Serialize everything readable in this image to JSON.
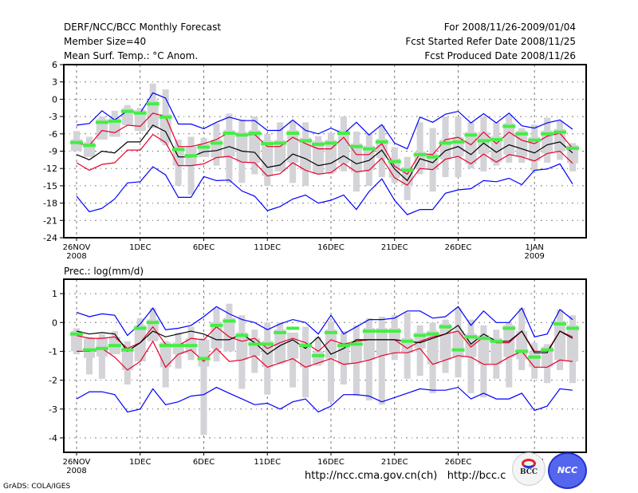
{
  "header": {
    "title": "DERF/NCC/BCC Monthly Forecast",
    "member_size": "Member Size=40",
    "variable": "Mean Surf. Temp.: °C Anom.",
    "period": "For 2008/11/26-2009/01/04",
    "started": "Fcst Started Refer Date 2008/11/25",
    "produced": "Fcst Produced Date 2008/11/26"
  },
  "footer": {
    "grads": "GrADS: COLA/IGES",
    "url": "http://ncc.cma.gov.cn(ch)   http://bcc.c",
    "logos": [
      "BCC",
      "NCC"
    ]
  },
  "colors": {
    "max_min": "#0000ff",
    "spread": "#e8002a",
    "mean": "#000000",
    "median": "#44ee44",
    "box": "#d3d3d8"
  },
  "chart_data": [
    {
      "type": "line",
      "title": "Mean Surf. Temp.: °C Anom.",
      "xlabel": "",
      "ylabel": "",
      "ylim": [
        -24,
        6
      ],
      "yticks": [
        6,
        3,
        0,
        -3,
        -6,
        -9,
        -12,
        -15,
        -18,
        -21,
        -24
      ],
      "ytick_labels": [
        "6",
        "3",
        "0",
        "-3",
        "-6",
        "-9",
        "-12",
        "-15",
        "-18",
        "-21",
        "-24"
      ],
      "xticks": [
        0,
        5,
        10,
        15,
        20,
        25,
        30,
        36
      ],
      "xtick_labels": [
        "26NOV\n2008",
        "1DEC",
        "6DEC",
        "11DEC",
        "16DEC",
        "21DEC",
        "26DEC",
        "1JAN\n2009"
      ],
      "grid": true,
      "x": [
        0,
        1,
        2,
        3,
        4,
        5,
        6,
        7,
        8,
        9,
        10,
        11,
        12,
        13,
        14,
        15,
        16,
        17,
        18,
        19,
        20,
        21,
        22,
        23,
        24,
        25,
        26,
        27,
        28,
        29,
        30,
        31,
        32,
        33,
        34,
        35,
        36,
        37,
        38,
        39
      ],
      "series": [
        {
          "name": "max",
          "values": [
            -4.5,
            -4.2,
            -2.0,
            -3.6,
            -2.0,
            -2.4,
            1.1,
            0.2,
            -4.3,
            -4.3,
            -5.1,
            -4.0,
            -3.1,
            -3.7,
            -3.7,
            -5.4,
            -5.4,
            -3.6,
            -5.4,
            -6.0,
            -5.0,
            -6.0,
            -4.0,
            -6.2,
            -4.4,
            -7.6,
            -8.6,
            -3.1,
            -4.0,
            -2.6,
            -2.1,
            -4.1,
            -2.5,
            -4.1,
            -2.4,
            -4.6,
            -5.0,
            -4.1,
            -3.6,
            -5.2
          ]
        },
        {
          "name": "spread_upper",
          "values": [
            -7.6,
            -8.0,
            -5.4,
            -5.8,
            -4.5,
            -4.7,
            -2.4,
            -3.0,
            -8.2,
            -8.2,
            -7.7,
            -7.0,
            -5.7,
            -6.2,
            -6.1,
            -8.2,
            -8.2,
            -6.6,
            -7.7,
            -8.6,
            -8.6,
            -6.6,
            -9.6,
            -9.6,
            -7.7,
            -11.6,
            -13.0,
            -9.4,
            -9.6,
            -7.0,
            -6.6,
            -7.9,
            -5.7,
            -7.7,
            -5.7,
            -7.1,
            -7.7,
            -6.4,
            -5.9,
            -8.5
          ]
        },
        {
          "name": "mean",
          "values": [
            -9.6,
            -10.5,
            -9.0,
            -9.3,
            -7.4,
            -7.4,
            -4.5,
            -5.6,
            -10.0,
            -10.0,
            -9.1,
            -8.9,
            -8.2,
            -9.0,
            -9.2,
            -11.8,
            -11.4,
            -9.5,
            -10.3,
            -11.5,
            -11.1,
            -9.8,
            -11.2,
            -10.6,
            -8.8,
            -12.1,
            -14.1,
            -10.3,
            -11.0,
            -8.9,
            -8.2,
            -9.6,
            -7.6,
            -9.2,
            -7.9,
            -8.6,
            -9.3,
            -7.9,
            -7.4,
            -9.3
          ]
        },
        {
          "name": "spread_lower",
          "values": [
            -11.0,
            -12.3,
            -11.3,
            -11.0,
            -8.8,
            -8.8,
            -6.1,
            -7.5,
            -11.5,
            -11.5,
            -11.2,
            -10.1,
            -9.9,
            -10.9,
            -11.0,
            -13.3,
            -12.9,
            -11.0,
            -12.3,
            -13.0,
            -12.7,
            -11.1,
            -12.6,
            -12.3,
            -10.2,
            -13.6,
            -14.9,
            -12.0,
            -12.2,
            -10.4,
            -9.9,
            -11.2,
            -9.5,
            -10.9,
            -9.6,
            -10.0,
            -10.7,
            -9.4,
            -9.0,
            -11.1
          ]
        },
        {
          "name": "min",
          "values": [
            -16.8,
            -19.5,
            -18.9,
            -17.3,
            -14.5,
            -14.3,
            -11.7,
            -13.1,
            -17.0,
            -17.0,
            -13.4,
            -14.1,
            -14.0,
            -15.9,
            -16.8,
            -19.3,
            -18.6,
            -17.3,
            -16.6,
            -18.0,
            -17.5,
            -16.6,
            -19.1,
            -16.0,
            -13.8,
            -17.5,
            -20.0,
            -19.1,
            -19.1,
            -16.3,
            -15.7,
            -15.5,
            -14.1,
            -14.3,
            -13.7,
            -14.8,
            -12.3,
            -12.1,
            -11.2,
            -14.7
          ]
        },
        {
          "name": "median",
          "values": [
            -7.5,
            -8.0,
            -4.0,
            -3.8,
            -2.1,
            -2.4,
            -0.8,
            -3.1,
            -8.7,
            -9.8,
            -8.3,
            -7.6,
            -5.9,
            -6.2,
            -5.9,
            -7.7,
            -7.6,
            -5.9,
            -7.2,
            -7.8,
            -7.6,
            -5.9,
            -8.2,
            -8.6,
            -7.4,
            -10.8,
            -12.3,
            -9.6,
            -10.0,
            -7.6,
            -7.4,
            -6.2,
            -7.2,
            -7.0,
            -4.7,
            -6.0,
            -7.1,
            -6.0,
            -5.7,
            -8.5
          ]
        },
        {
          "name": "q75",
          "values": [
            -5.5,
            -6.5,
            -3.0,
            -2.0,
            -1.0,
            -1.5,
            2.7,
            1.7,
            -7.0,
            -6.5,
            -6.7,
            -4.2,
            -2.5,
            -3.5,
            -3.0,
            -6.0,
            -4.0,
            -3.8,
            -4.0,
            -6.4,
            -5.8,
            -3.0,
            -5.6,
            -6.0,
            -4.5,
            -8.3,
            -10.0,
            -4.0,
            -5.0,
            -3.0,
            -3.0,
            -4.0,
            -3.0,
            -4.0,
            -2.7,
            -5.0,
            -4.4,
            -3.2,
            -3.8,
            -7.6
          ]
        },
        {
          "name": "q25",
          "values": [
            -9.0,
            -10.0,
            -7.0,
            -6.5,
            -4.5,
            -5.5,
            -5.0,
            -8.0,
            -15.0,
            -16.5,
            -10.0,
            -11.5,
            -14.5,
            -14.5,
            -13.0,
            -15.0,
            -12.5,
            -14.5,
            -15.0,
            -13.0,
            -13.0,
            -12.5,
            -16.0,
            -15.0,
            -13.5,
            -14.5,
            -17.5,
            -13.0,
            -16.0,
            -13.5,
            -13.5,
            -12.0,
            -12.5,
            -11.5,
            -11.0,
            -11.0,
            -12.5,
            -11.0,
            -10.5,
            -12.5
          ]
        }
      ]
    },
    {
      "type": "line",
      "title": "Prec.: log(mm/d)",
      "xlabel": "",
      "ylabel": "",
      "ylim": [
        -4.5,
        1.5
      ],
      "yticks": [
        1,
        0,
        -1,
        -2,
        -3,
        -4
      ],
      "ytick_labels": [
        "1",
        "0",
        "-1",
        "-2",
        "-3",
        "-4"
      ],
      "xticks": [
        0,
        5,
        10,
        15,
        20,
        25,
        30,
        36
      ],
      "xtick_labels": [
        "26NOV\n2008",
        "1DEC",
        "6DEC",
        "11DEC",
        "16DEC",
        "21DEC",
        "26DEC",
        "1JAN\n2009"
      ],
      "grid": true,
      "x": [
        0,
        1,
        2,
        3,
        4,
        5,
        6,
        7,
        8,
        9,
        10,
        11,
        12,
        13,
        14,
        15,
        16,
        17,
        18,
        19,
        20,
        21,
        22,
        23,
        24,
        25,
        26,
        27,
        28,
        29,
        30,
        31,
        32,
        33,
        34,
        35,
        36,
        37,
        38,
        39
      ],
      "series": [
        {
          "name": "max",
          "values": [
            0.35,
            0.2,
            0.3,
            0.25,
            -0.45,
            -0.05,
            0.5,
            -0.25,
            -0.2,
            -0.1,
            0.2,
            0.55,
            0.3,
            0.1,
            0.0,
            -0.25,
            -0.05,
            0.1,
            0.0,
            -0.4,
            0.25,
            -0.4,
            -0.15,
            0.1,
            0.1,
            0.15,
            0.4,
            0.4,
            0.15,
            0.2,
            0.55,
            -0.1,
            0.4,
            0.0,
            0.0,
            0.5,
            -0.5,
            -0.4,
            0.45,
            0.1
          ]
        },
        {
          "name": "spread_upper",
          "values": [
            -0.45,
            -0.55,
            -0.55,
            -0.5,
            -0.9,
            -0.7,
            -0.15,
            -0.75,
            -0.8,
            -0.55,
            -0.6,
            -0.15,
            -0.5,
            -0.65,
            -0.55,
            -0.9,
            -0.7,
            -0.55,
            -0.7,
            -1.0,
            -0.6,
            -0.75,
            -0.65,
            -0.6,
            -0.6,
            -0.6,
            -0.9,
            -0.65,
            -0.5,
            -0.4,
            -0.3,
            -0.85,
            -0.5,
            -0.7,
            -0.7,
            -0.3,
            -1.0,
            -1.0,
            -0.3,
            -0.5
          ]
        },
        {
          "name": "mean",
          "values": [
            -0.3,
            -0.4,
            -0.35,
            -0.4,
            -1.0,
            -0.7,
            -0.3,
            -0.5,
            -0.4,
            -0.3,
            -0.4,
            -0.6,
            -0.6,
            -0.4,
            -0.7,
            -1.1,
            -0.8,
            -0.6,
            -0.9,
            -0.5,
            -1.1,
            -0.9,
            -0.6,
            -0.6,
            -0.6,
            -0.6,
            -0.65,
            -0.7,
            -0.55,
            -0.4,
            -0.1,
            -0.75,
            -0.4,
            -0.65,
            -0.65,
            -0.3,
            -1.05,
            -1.05,
            -0.3,
            -0.55
          ]
        },
        {
          "name": "spread_lower",
          "values": [
            -1.0,
            -1.0,
            -0.9,
            -1.2,
            -1.65,
            -1.35,
            -0.65,
            -1.55,
            -1.1,
            -0.95,
            -1.35,
            -0.9,
            -1.35,
            -1.3,
            -1.15,
            -1.55,
            -1.4,
            -1.25,
            -1.55,
            -1.4,
            -1.25,
            -1.45,
            -1.4,
            -1.3,
            -1.15,
            -1.05,
            -1.05,
            -0.9,
            -1.45,
            -1.3,
            -1.15,
            -1.2,
            -1.45,
            -1.45,
            -1.2,
            -1.0,
            -1.55,
            -1.55,
            -1.3,
            -1.35
          ]
        },
        {
          "name": "min",
          "values": [
            -2.65,
            -2.4,
            -2.4,
            -2.5,
            -3.1,
            -3.0,
            -2.3,
            -2.85,
            -2.75,
            -2.55,
            -2.5,
            -2.25,
            -2.45,
            -2.65,
            -2.85,
            -2.8,
            -3.0,
            -2.75,
            -2.65,
            -3.1,
            -2.9,
            -2.5,
            -2.5,
            -2.55,
            -2.75,
            -2.6,
            -2.45,
            -2.3,
            -2.35,
            -2.35,
            -2.25,
            -2.65,
            -2.45,
            -2.65,
            -2.65,
            -2.45,
            -3.05,
            -2.9,
            -2.3,
            -2.35
          ]
        },
        {
          "name": "median",
          "values": [
            -0.4,
            -0.95,
            -0.9,
            -0.8,
            -0.95,
            -0.2,
            0.0,
            -0.8,
            -0.8,
            -0.8,
            -1.25,
            -0.1,
            0.05,
            -0.45,
            -0.75,
            -0.75,
            -0.35,
            -0.2,
            -0.8,
            -1.15,
            -0.35,
            -0.8,
            -0.75,
            -0.3,
            -0.3,
            -0.3,
            -0.65,
            -0.45,
            -0.4,
            -0.15,
            -0.95,
            -0.5,
            -0.55,
            -0.65,
            -0.2,
            -1.0,
            -1.2,
            -0.95,
            -0.05,
            -0.2
          ]
        },
        {
          "name": "q75",
          "values": [
            -0.2,
            -0.5,
            -0.4,
            -0.3,
            -0.65,
            0.15,
            0.5,
            -0.65,
            -0.35,
            -0.15,
            -0.55,
            0.5,
            0.65,
            0.25,
            -0.25,
            0.0,
            0.0,
            -0.35,
            -0.15,
            -0.5,
            0.05,
            -0.3,
            -0.1,
            0.15,
            0.2,
            0.25,
            0.35,
            -0.1,
            0.0,
            0.1,
            0.5,
            0.1,
            -0.1,
            -0.25,
            0.0,
            0.5,
            -0.7,
            -0.75,
            0.45,
            0.25
          ]
        },
        {
          "name": "q25",
          "values": [
            -1.1,
            -1.8,
            -1.95,
            -1.1,
            -2.15,
            -1.35,
            -0.65,
            -2.25,
            -1.6,
            -1.3,
            -3.9,
            -1.35,
            -1.0,
            -2.3,
            -1.75,
            -2.5,
            -1.45,
            -2.25,
            -2.6,
            -1.5,
            -2.75,
            -2.15,
            -2.55,
            -2.7,
            -2.85,
            -1.3,
            -1.95,
            -1.85,
            -2.45,
            -1.75,
            -1.9,
            -2.45,
            -2.6,
            -1.95,
            -2.25,
            -1.65,
            -1.95,
            -2.1,
            -1.65,
            -2.1
          ]
        }
      ]
    }
  ]
}
